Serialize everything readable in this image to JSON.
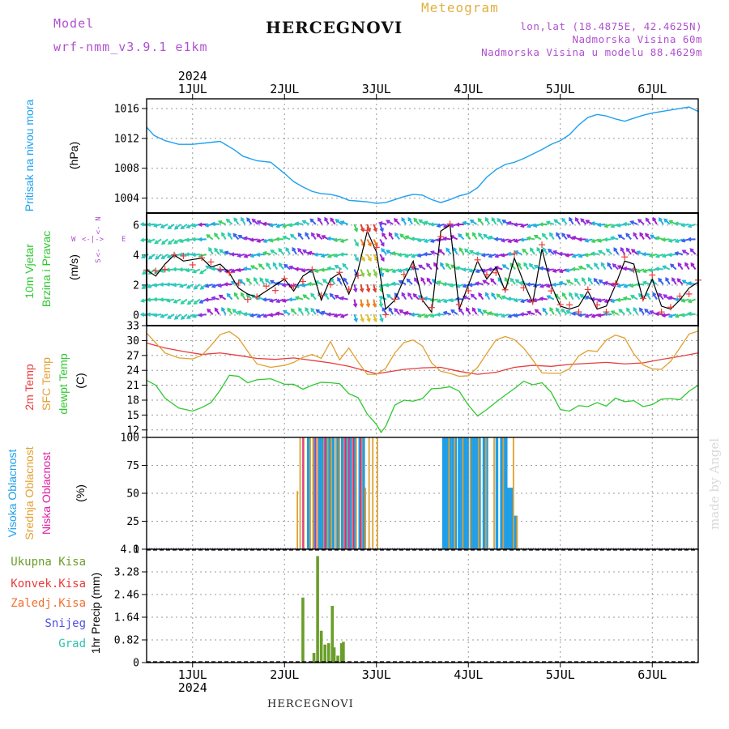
{
  "header": {
    "model_label": "Model",
    "model_name": "wrf-nmm_v3.9.1  e1km",
    "meteogram": "Meteogram",
    "station": "HERCEGNOVI",
    "lonlat": "lon,lat (18.4875E, 42.4625N)",
    "elevation": "Nadmorska Visina 60m",
    "model_elevation": "Nadmorska Visina u modelu 88.4629m"
  },
  "footer": {
    "station": "HERCEGNOVI",
    "credit": "made by Angel"
  },
  "colors": {
    "pressure": "#1ea0f0",
    "t2m": "#e83c3c",
    "tsfc": "#e0a030",
    "dewp": "#30c830",
    "cloud_high": "#1e9ee8",
    "cloud_mid": "#e0a030",
    "cloud_low": "#e020a0",
    "precip_total": "#6a9e2a",
    "wind_label": "#30c830",
    "dir_label": "#b050d0",
    "wind_line": "#000000",
    "wind_marks": "#e83c3c"
  },
  "chart_data": [
    {
      "type": "line",
      "panel": "pressure",
      "ylabel_lines": [
        "Pritisak na nivou mora",
        "(hPa)"
      ],
      "yticks": [
        "1004",
        "1008",
        "1012",
        "1016"
      ],
      "ylim": [
        1002,
        1017.3
      ],
      "x_days": [
        "1JUL",
        "2JUL",
        "3JUL",
        "4JUL",
        "5JUL",
        "6JUL"
      ],
      "year": "2024",
      "xlim": [
        0.5,
        6.5
      ],
      "series": [
        {
          "x": [
            0.5,
            0.58,
            0.7,
            0.85,
            1,
            1.15,
            1.3,
            1.45,
            1.55,
            1.7,
            1.85,
            2,
            2.1,
            2.2,
            2.3,
            2.4,
            2.5,
            2.6,
            2.7,
            2.8,
            2.9,
            3,
            3.1,
            3.2,
            3.3,
            3.4,
            3.5,
            3.6,
            3.7,
            3.8,
            3.9,
            4,
            4.1,
            4.2,
            4.3,
            4.4,
            4.5,
            4.6,
            4.7,
            4.8,
            4.9,
            5,
            5.1,
            5.2,
            5.3,
            5.4,
            5.5,
            5.6,
            5.7,
            5.8,
            5.9,
            6,
            6.1,
            6.2,
            6.3,
            6.4,
            6.5
          ],
          "y": [
            1013.5,
            1012.4,
            1011.7,
            1011.2,
            1011.2,
            1011.4,
            1011.6,
            1010.5,
            1009.6,
            1009,
            1008.8,
            1007.3,
            1006.2,
            1005.5,
            1004.9,
            1004.6,
            1004.5,
            1004.2,
            1003.7,
            1003.6,
            1003.5,
            1003.3,
            1003.4,
            1003.8,
            1004.2,
            1004.5,
            1004.4,
            1003.8,
            1003.4,
            1003.8,
            1004.3,
            1004.6,
            1005.4,
            1006.8,
            1007.8,
            1008.5,
            1008.8,
            1009.3,
            1009.9,
            1010.5,
            1011.2,
            1011.7,
            1012.5,
            1013.8,
            1014.8,
            1015.2,
            1015,
            1014.6,
            1014.3,
            1014.7,
            1015.1,
            1015.4,
            1015.6,
            1015.8,
            1016,
            1016.2,
            1015.6
          ]
        }
      ]
    },
    {
      "type": "line",
      "panel": "wind",
      "ylabel_lines": [
        "10m Vjetar",
        "Brzina i Pravac",
        "(m/s)"
      ],
      "direction_legend": [
        "N",
        "W",
        "E",
        "S"
      ],
      "yticks": [
        "0",
        "2",
        "4",
        "6"
      ],
      "ylim": [
        -0.7,
        6.8
      ],
      "xlim": [
        0.5,
        6.5
      ],
      "series": [
        {
          "name": "speed",
          "x": [
            0.5,
            0.6,
            0.7,
            0.8,
            0.9,
            1,
            1.1,
            1.2,
            1.3,
            1.4,
            1.5,
            1.6,
            1.7,
            1.8,
            1.9,
            2,
            2.1,
            2.2,
            2.3,
            2.4,
            2.5,
            2.6,
            2.7,
            2.8,
            2.9,
            3,
            3.1,
            3.2,
            3.3,
            3.4,
            3.5,
            3.6,
            3.7,
            3.8,
            3.9,
            4,
            4.1,
            4.2,
            4.3,
            4.4,
            4.5,
            4.6,
            4.7,
            4.8,
            4.9,
            5,
            5.1,
            5.2,
            5.3,
            5.4,
            5.5,
            5.6,
            5.7,
            5.8,
            5.9,
            6,
            6.1,
            6.2,
            6.3,
            6.4,
            6.5
          ],
          "y": [
            3.0,
            2.6,
            3.4,
            4.0,
            3.6,
            3.7,
            3.8,
            3.2,
            3.4,
            2.8,
            1.8,
            1.4,
            1.2,
            1.6,
            2.0,
            2.4,
            1.6,
            2.6,
            3.0,
            1.0,
            2.4,
            2.8,
            1.4,
            3.0,
            5.6,
            4.2,
            0.4,
            1.0,
            2.4,
            3.6,
            1.0,
            0.2,
            5.6,
            6.0,
            0.4,
            2.0,
            3.6,
            2.4,
            3.2,
            1.6,
            3.8,
            2.2,
            0.8,
            4.4,
            2.0,
            0.6,
            0.4,
            0.6,
            1.6,
            0.4,
            0.6,
            2.0,
            3.6,
            3.4,
            1.0,
            2.4,
            0.6,
            0.4,
            1.0,
            1.8,
            2.2
          ]
        }
      ]
    },
    {
      "type": "line",
      "panel": "temperature",
      "ylabel_lines": [
        "2m Temp",
        "SFC Temp",
        "dewpt Temp",
        "(C)"
      ],
      "yticks": [
        "12",
        "15",
        "18",
        "21",
        "24",
        "27",
        "30",
        "33"
      ],
      "ylim": [
        10.5,
        33
      ],
      "xlim": [
        0.5,
        6.5
      ],
      "series": [
        {
          "name": "2m Temp",
          "x": [
            0.5,
            0.7,
            0.9,
            1.1,
            1.3,
            1.5,
            1.7,
            1.9,
            2.1,
            2.3,
            2.5,
            2.7,
            2.9,
            3,
            3.1,
            3.3,
            3.5,
            3.7,
            3.9,
            4.1,
            4.3,
            4.5,
            4.7,
            4.9,
            5.1,
            5.3,
            5.5,
            5.7,
            5.9,
            6.1,
            6.3,
            6.5
          ],
          "y": [
            29.5,
            28.5,
            27.8,
            27.2,
            27.5,
            27,
            26.4,
            26.2,
            26.5,
            26,
            25.5,
            24.8,
            23.8,
            23.3,
            23.6,
            24.2,
            24.5,
            24.6,
            23.8,
            23.2,
            23.6,
            24.6,
            25,
            24.8,
            25.2,
            25.4,
            25.6,
            25.3,
            25.5,
            26.2,
            26.8,
            27.5
          ]
        },
        {
          "name": "SFC Temp",
          "x": [
            0.5,
            0.6,
            0.7,
            0.85,
            1,
            1.1,
            1.2,
            1.3,
            1.4,
            1.5,
            1.6,
            1.7,
            1.85,
            2,
            2.1,
            2.2,
            2.3,
            2.4,
            2.5,
            2.6,
            2.7,
            2.8,
            2.9,
            3,
            3.1,
            3.2,
            3.3,
            3.4,
            3.5,
            3.6,
            3.7,
            3.8,
            3.9,
            4,
            4.1,
            4.2,
            4.3,
            4.4,
            4.5,
            4.6,
            4.7,
            4.8,
            4.9,
            5,
            5.1,
            5.2,
            5.3,
            5.4,
            5.5,
            5.6,
            5.7,
            5.8,
            5.9,
            6,
            6.1,
            6.2,
            6.3,
            6.4,
            6.5
          ],
          "y": [
            31.5,
            29.5,
            27.5,
            26.5,
            26.3,
            27,
            29,
            31.2,
            31.8,
            30.5,
            27.8,
            25.3,
            24.6,
            25,
            25.6,
            26.6,
            27.2,
            26.4,
            29.8,
            26.1,
            28.5,
            25.7,
            23.2,
            23.2,
            24.4,
            27.5,
            29.6,
            30.1,
            28.9,
            25.5,
            23.8,
            23.4,
            22.8,
            22.9,
            24.6,
            27.4,
            30.1,
            30.8,
            30.2,
            28.5,
            26.1,
            23.5,
            23.4,
            23.4,
            24.3,
            26.9,
            28,
            27.8,
            30.1,
            31.1,
            30.5,
            27.3,
            25.1,
            24.3,
            24.2,
            25.8,
            28.5,
            31.3,
            31.9
          ]
        },
        {
          "name": "dewpt Temp",
          "x": [
            0.5,
            0.6,
            0.7,
            0.85,
            1,
            1.1,
            1.2,
            1.3,
            1.4,
            1.5,
            1.6,
            1.7,
            1.85,
            2,
            2.1,
            2.2,
            2.3,
            2.4,
            2.5,
            2.6,
            2.7,
            2.8,
            2.9,
            3,
            3.05,
            3.1,
            3.2,
            3.3,
            3.4,
            3.5,
            3.6,
            3.7,
            3.8,
            3.9,
            4,
            4.1,
            4.2,
            4.3,
            4.4,
            4.5,
            4.6,
            4.7,
            4.8,
            4.9,
            5,
            5.1,
            5.2,
            5.3,
            5.4,
            5.5,
            5.6,
            5.7,
            5.8,
            5.9,
            6,
            6.1,
            6.2,
            6.3,
            6.4,
            6.5
          ],
          "y": [
            22,
            21,
            18.4,
            16.4,
            15.8,
            16.5,
            17.5,
            20,
            23,
            22.8,
            21.5,
            22.1,
            22.3,
            21.2,
            21.2,
            20.2,
            21,
            21.6,
            21.5,
            21.3,
            19.3,
            18.5,
            15.2,
            13.1,
            11.5,
            12.7,
            17,
            18,
            17.8,
            18.3,
            20.3,
            20.4,
            20.7,
            19.8,
            17,
            14.8,
            16.1,
            17.6,
            19,
            20.3,
            21.8,
            21.1,
            21.5,
            19.6,
            16.1,
            15.8,
            16.9,
            16.7,
            17.5,
            16.8,
            18.4,
            17.7,
            17.9,
            16.7,
            17.1,
            18.2,
            18.3,
            18.1,
            19.8,
            21
          ]
        }
      ]
    },
    {
      "type": "bar",
      "panel": "clouds",
      "ylabel_lines": [
        "Visoka Oblacnost",
        "Srednja Oblacnost",
        "Niska Oblacnost",
        "(%)"
      ],
      "yticks": [
        "0",
        "25",
        "50",
        "75",
        "100"
      ],
      "ylim": [
        0,
        100
      ],
      "xlim": [
        0.5,
        6.5
      ],
      "series": [
        {
          "name": "Visoka Oblacnost",
          "x": [
            2.26,
            2.33,
            2.38,
            2.41,
            2.45,
            2.49,
            2.53,
            2.58,
            2.63,
            2.67,
            2.72,
            2.76,
            2.82,
            2.86,
            3.73,
            3.75,
            3.78,
            3.8,
            3.83,
            3.86,
            3.9,
            3.93,
            3.96,
            3.99,
            4.03,
            4.06,
            4.09,
            4.12,
            4.17,
            4.2,
            4.31,
            4.36,
            4.39,
            4.41,
            4.44,
            4.47,
            4.51
          ],
          "values": [
            100,
            100,
            100,
            100,
            100,
            100,
            100,
            100,
            100,
            100,
            100,
            100,
            100,
            100,
            100,
            100,
            100,
            100,
            100,
            100,
            100,
            100,
            100,
            100,
            100,
            100,
            100,
            100,
            100,
            100,
            100,
            100,
            100,
            100,
            55,
            55,
            30
          ]
        },
        {
          "name": "Srednja Oblacnost",
          "x": [
            2.14,
            2.17,
            2.21,
            2.28,
            2.31,
            2.36,
            2.43,
            2.47,
            2.51,
            2.56,
            2.6,
            2.65,
            2.69,
            2.74,
            2.78,
            2.84,
            2.88,
            2.92,
            2.96,
            3.01,
            3.79,
            3.85,
            3.94,
            4.02,
            4.11,
            4.19,
            4.28,
            4.38,
            4.49,
            4.53
          ],
          "values": [
            52,
            100,
            100,
            100,
            100,
            100,
            100,
            100,
            100,
            100,
            100,
            100,
            100,
            100,
            100,
            100,
            55,
            100,
            100,
            100,
            100,
            100,
            100,
            100,
            100,
            100,
            100,
            100,
            100,
            30
          ]
        },
        {
          "name": "Niska Oblacnost",
          "x": [
            2.2,
            2.34,
            2.44,
            2.66,
            2.7,
            2.75,
            2.83
          ],
          "values": [
            100,
            100,
            100,
            100,
            100,
            100,
            100
          ]
        }
      ]
    },
    {
      "type": "bar",
      "panel": "precip",
      "ylabel_lines": [
        "1hr Precip (mm)"
      ],
      "legend": [
        "Ukupna Kisa",
        "Konvek.Kisa",
        "Zaledj.Kisa",
        "Snijeg",
        "Grad"
      ],
      "yticks": [
        "0",
        "0.82",
        "1.64",
        "2.46",
        "3.28",
        "4.1"
      ],
      "ylim": [
        0,
        4.1
      ],
      "xlim": [
        0.5,
        6.5
      ],
      "series": [
        {
          "name": "Ukupna Kisa",
          "x": [
            2.2,
            2.32,
            2.36,
            2.4,
            2.44,
            2.48,
            2.52,
            2.54,
            2.58,
            2.62,
            2.64
          ],
          "values": [
            2.35,
            0.35,
            3.85,
            1.15,
            0.65,
            0.7,
            2.05,
            0.55,
            0.25,
            0.7,
            0.75
          ]
        }
      ]
    }
  ]
}
